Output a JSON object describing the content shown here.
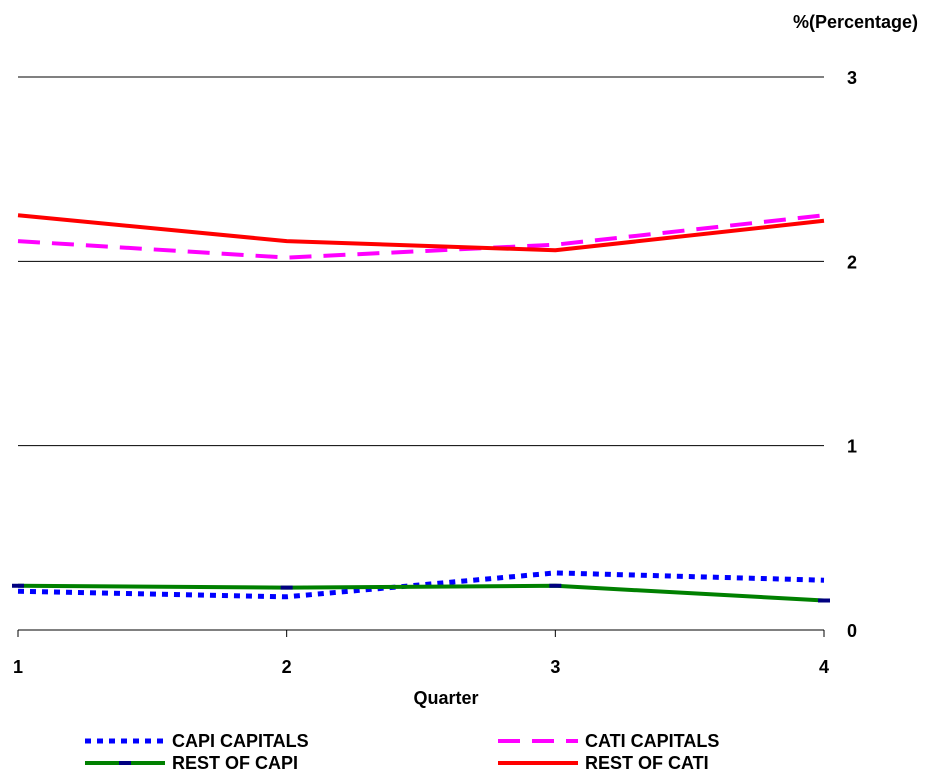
{
  "chart_data": {
    "type": "line",
    "unit_label": "%(Percentage)",
    "xlabel": "Quarter",
    "ylabel": "",
    "categories": [
      "1",
      "2",
      "3",
      "4"
    ],
    "ylim": [
      0,
      3
    ],
    "yticks": [
      "0",
      "1",
      "2",
      "3"
    ],
    "grid": true,
    "legend_position": "bottom",
    "series": [
      {
        "name": "CAPI CAPITALS",
        "color": "#0000ff",
        "style": "dotted",
        "values": [
          0.21,
          0.18,
          0.31,
          0.27
        ]
      },
      {
        "name": "CATI CAPITALS",
        "color": "#ff00ff",
        "style": "dashed",
        "values": [
          2.11,
          2.02,
          2.09,
          2.25
        ]
      },
      {
        "name": "REST OF CAPI",
        "color": "#008000",
        "style": "solid-marker",
        "values": [
          0.24,
          0.23,
          0.24,
          0.16
        ]
      },
      {
        "name": "REST OF CATI",
        "color": "#ff0000",
        "style": "solid",
        "values": [
          2.25,
          2.11,
          2.06,
          2.22
        ]
      }
    ]
  }
}
